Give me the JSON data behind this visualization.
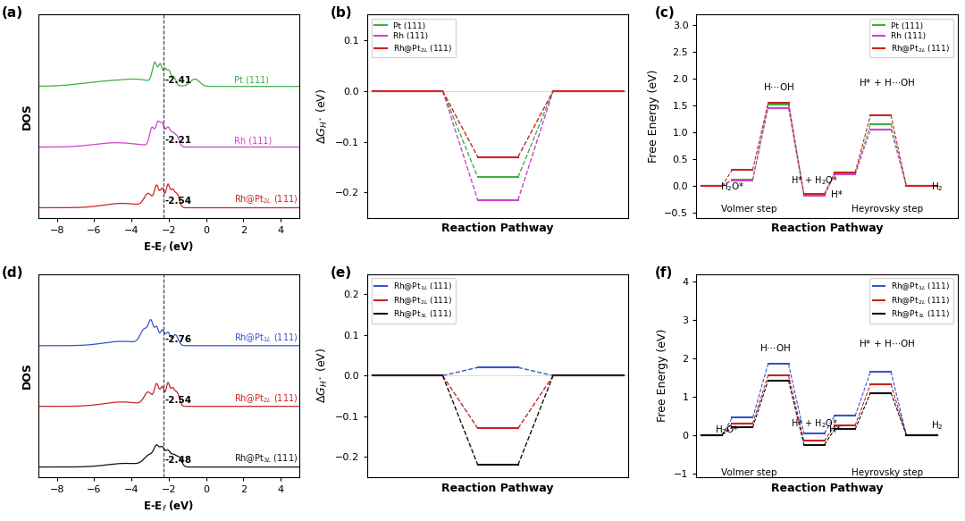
{
  "panel_a": {
    "label": "(a)",
    "dos_color_top": "#3cb043",
    "dos_color_mid": "#cc44cc",
    "dos_color_bot": "#cc2222",
    "dos_labels": [
      "Pt (111)",
      "Rh (111)",
      "Rh@Pt$_{2L}$ (111)"
    ],
    "d_band_centers": [
      -2.41,
      -2.21,
      -2.54
    ],
    "xlabel": "E-E$_f$ (eV)",
    "ylabel": "DOS",
    "xlim": [
      -9,
      5
    ],
    "dashed_x": -2.3
  },
  "panel_b": {
    "label": "(b)",
    "colors": [
      "#3cb043",
      "#cc44cc",
      "#cc2222"
    ],
    "labels": [
      "Pt (111)",
      "Rh (111)",
      "Rh@Pt$_{2L}$ (111)"
    ],
    "gh_values": [
      -0.17,
      -0.215,
      -0.13
    ],
    "ylim": [
      -0.25,
      0.15
    ],
    "yticks": [
      0.1,
      0.0,
      -0.1,
      -0.2
    ],
    "xlabel": "Reaction Pathway",
    "ylabel": "$\\Delta G_{H^*}$ (eV)"
  },
  "panel_c": {
    "label": "(c)",
    "colors": [
      "#3cb043",
      "#cc44cc",
      "#cc2222"
    ],
    "labels": [
      "Pt (111)",
      "Rh (111)",
      "Rh@Pt$_{2L}$ (111)"
    ],
    "energies_Pt": [
      0.0,
      0.12,
      1.52,
      -0.17,
      0.22,
      1.15,
      0.0
    ],
    "energies_Rh": [
      0.0,
      0.1,
      1.45,
      -0.18,
      0.21,
      1.05,
      0.0
    ],
    "energies_RhPt": [
      0.0,
      0.3,
      1.55,
      -0.15,
      0.25,
      1.32,
      0.0
    ],
    "ylim": [
      -0.6,
      3.2
    ],
    "yticks": [
      -0.5,
      0.0,
      0.5,
      1.0,
      1.5,
      2.0,
      2.5,
      3.0
    ],
    "xlabel": "Reaction Pathway",
    "ylabel": "Free Energy (eV)"
  },
  "panel_d": {
    "label": "(d)",
    "dos_color_top": "#3355cc",
    "dos_color_mid": "#cc2222",
    "dos_color_bot": "#111111",
    "dos_labels": [
      "Rh@Pt$_{1L}$ (111)",
      "Rh@Pt$_{2L}$ (111)",
      "Rh@Pt$_{3L}$ (111)"
    ],
    "d_band_centers": [
      -2.76,
      -2.54,
      -2.48
    ],
    "xlabel": "E-E$_f$ (eV)",
    "ylabel": "DOS",
    "xlim": [
      -9,
      5
    ],
    "dashed_x": -2.3
  },
  "panel_e": {
    "label": "(e)",
    "colors": [
      "#3355cc",
      "#cc2222",
      "#111111"
    ],
    "labels": [
      "Rh@Pt$_{1L}$ (111)",
      "Rh@Pt$_{2L}$ (111)",
      "Rh@Pt$_{3L}$ (111)"
    ],
    "gh_values": [
      0.02,
      -0.13,
      -0.22
    ],
    "ylim": [
      -0.25,
      0.25
    ],
    "yticks": [
      0.2,
      0.1,
      0.0,
      -0.1,
      -0.2
    ],
    "xlabel": "Reaction Pathway",
    "ylabel": "$\\Delta G_{H^*}$ (eV)"
  },
  "panel_f": {
    "label": "(f)",
    "colors": [
      "#3355cc",
      "#cc2222",
      "#111111"
    ],
    "labels": [
      "Rh@Pt$_{1L}$ (111)",
      "Rh@Pt$_{2L}$ (111)",
      "Rh@Pt$_{3L}$ (111)"
    ],
    "energies_1L": [
      0.0,
      0.45,
      1.85,
      0.05,
      0.5,
      1.65,
      0.0
    ],
    "energies_2L": [
      0.0,
      0.3,
      1.55,
      -0.15,
      0.25,
      1.32,
      0.0
    ],
    "energies_3L": [
      0.0,
      0.2,
      1.42,
      -0.25,
      0.15,
      1.1,
      0.0
    ],
    "ylim": [
      -1.1,
      4.2
    ],
    "yticks": [
      -1,
      0,
      1,
      2,
      3,
      4
    ],
    "xlabel": "Reaction Pathway",
    "ylabel": "Free Energy (eV)"
  }
}
